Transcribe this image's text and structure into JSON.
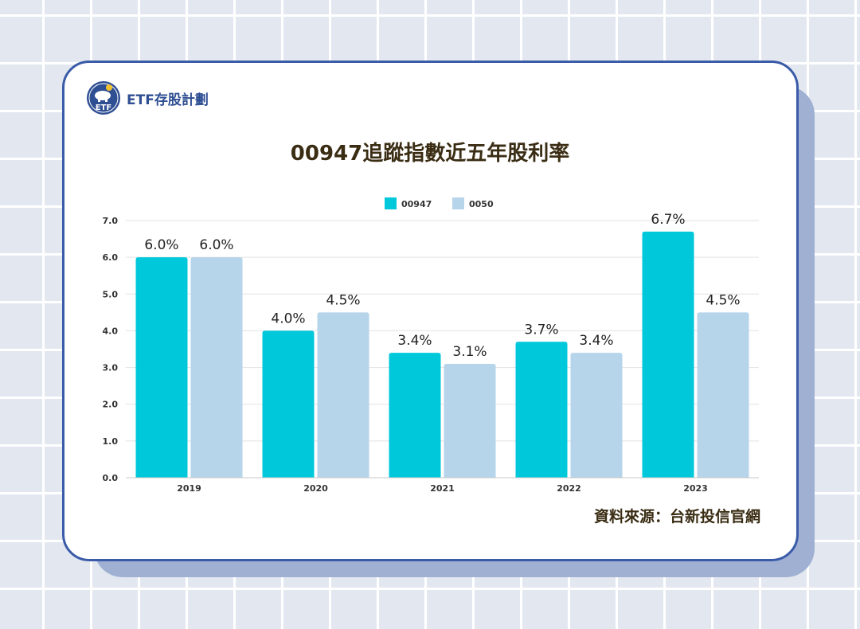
{
  "brand": {
    "name": "ETF存股計劃",
    "logo_text": "ETF"
  },
  "source": "資料來源：台新投信官網",
  "colors": {
    "series_a": "#00c8db",
    "series_b": "#b6d4ea",
    "frame": "#3a5ba8"
  },
  "chart_data": {
    "type": "bar",
    "title": "00947追蹤指數近五年股利率",
    "categories": [
      "2019",
      "2020",
      "2021",
      "2022",
      "2023"
    ],
    "series": [
      {
        "name": "00947",
        "values": [
          6.0,
          4.0,
          3.4,
          3.7,
          6.7
        ],
        "labels": [
          "6.0%",
          "4.0%",
          "3.4%",
          "3.7%",
          "6.7%"
        ]
      },
      {
        "name": "0050",
        "values": [
          6.0,
          4.5,
          3.1,
          3.4,
          4.5
        ],
        "labels": [
          "6.0%",
          "4.5%",
          "3.1%",
          "3.4%",
          "4.5%"
        ]
      }
    ],
    "yticks": [
      "0.0",
      "1.0",
      "2.0",
      "3.0",
      "4.0",
      "5.0",
      "6.0",
      "7.0"
    ],
    "ylim": [
      0,
      7
    ],
    "xlabel": "",
    "ylabel": "",
    "grid": true,
    "legend": "top-center"
  }
}
